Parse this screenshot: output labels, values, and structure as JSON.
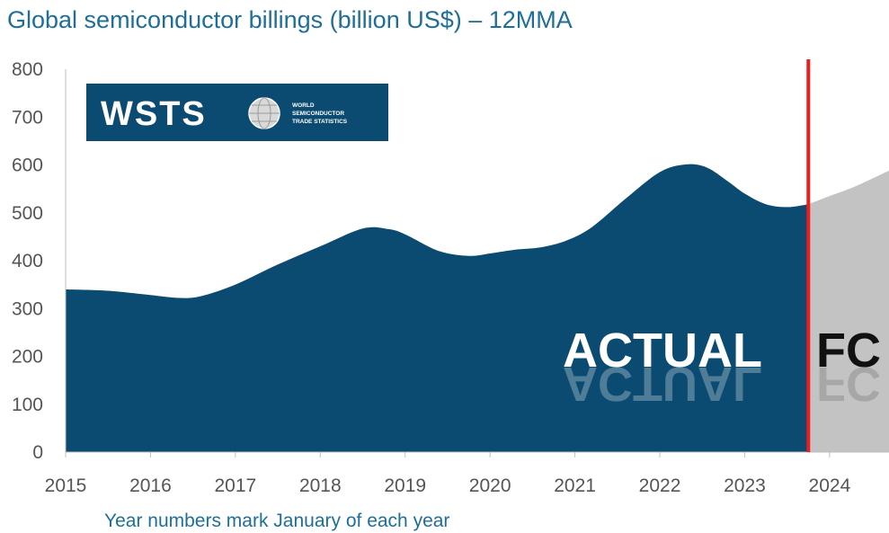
{
  "title": "Global semiconductor billings (billion US$) – 12MMA",
  "x_note": "Year numbers mark January of each year",
  "logo": {
    "word": "WSTS",
    "line1": "WORLD",
    "line2": "SEMICONDUCTOR",
    "line3": "TRADE STATISTICS"
  },
  "labels": {
    "actual": "ACTUAL",
    "forecast": "FC"
  },
  "colors": {
    "actual": "#0b4b71",
    "forecast": "#c3c3c3",
    "divider": "#ee1c1c",
    "title": "#1f6e97"
  },
  "chart_data": {
    "type": "area",
    "title": "Global semiconductor billings (billion US$) – 12MMA",
    "xlabel": "Year numbers mark January of each year",
    "ylabel": "",
    "ylim": [
      0,
      800
    ],
    "xlim": [
      2015,
      2024.7
    ],
    "y_ticks": [
      0,
      100,
      200,
      300,
      400,
      500,
      600,
      700,
      800
    ],
    "x_ticks": [
      2015,
      2016,
      2017,
      2018,
      2019,
      2020,
      2021,
      2022,
      2023,
      2024
    ],
    "divider_x": 2023.75,
    "grid": false,
    "series": [
      {
        "name": "ACTUAL",
        "x": [
          2015.0,
          2015.5,
          2016.0,
          2016.35,
          2016.6,
          2017.0,
          2017.5,
          2018.0,
          2018.5,
          2018.8,
          2019.0,
          2019.4,
          2019.75,
          2020.0,
          2020.3,
          2020.6,
          2020.9,
          2021.2,
          2021.6,
          2022.0,
          2022.3,
          2022.55,
          2022.8,
          2023.0,
          2023.25,
          2023.5,
          2023.75
        ],
        "values": [
          340,
          337,
          328,
          322,
          326,
          350,
          392,
          430,
          467,
          466,
          455,
          420,
          410,
          415,
          423,
          428,
          442,
          470,
          530,
          585,
          601,
          595,
          566,
          540,
          518,
          512,
          518
        ]
      },
      {
        "name": "FC",
        "x": [
          2023.75,
          2024.0,
          2024.3,
          2024.7
        ],
        "values": [
          518,
          535,
          555,
          588
        ]
      }
    ]
  }
}
